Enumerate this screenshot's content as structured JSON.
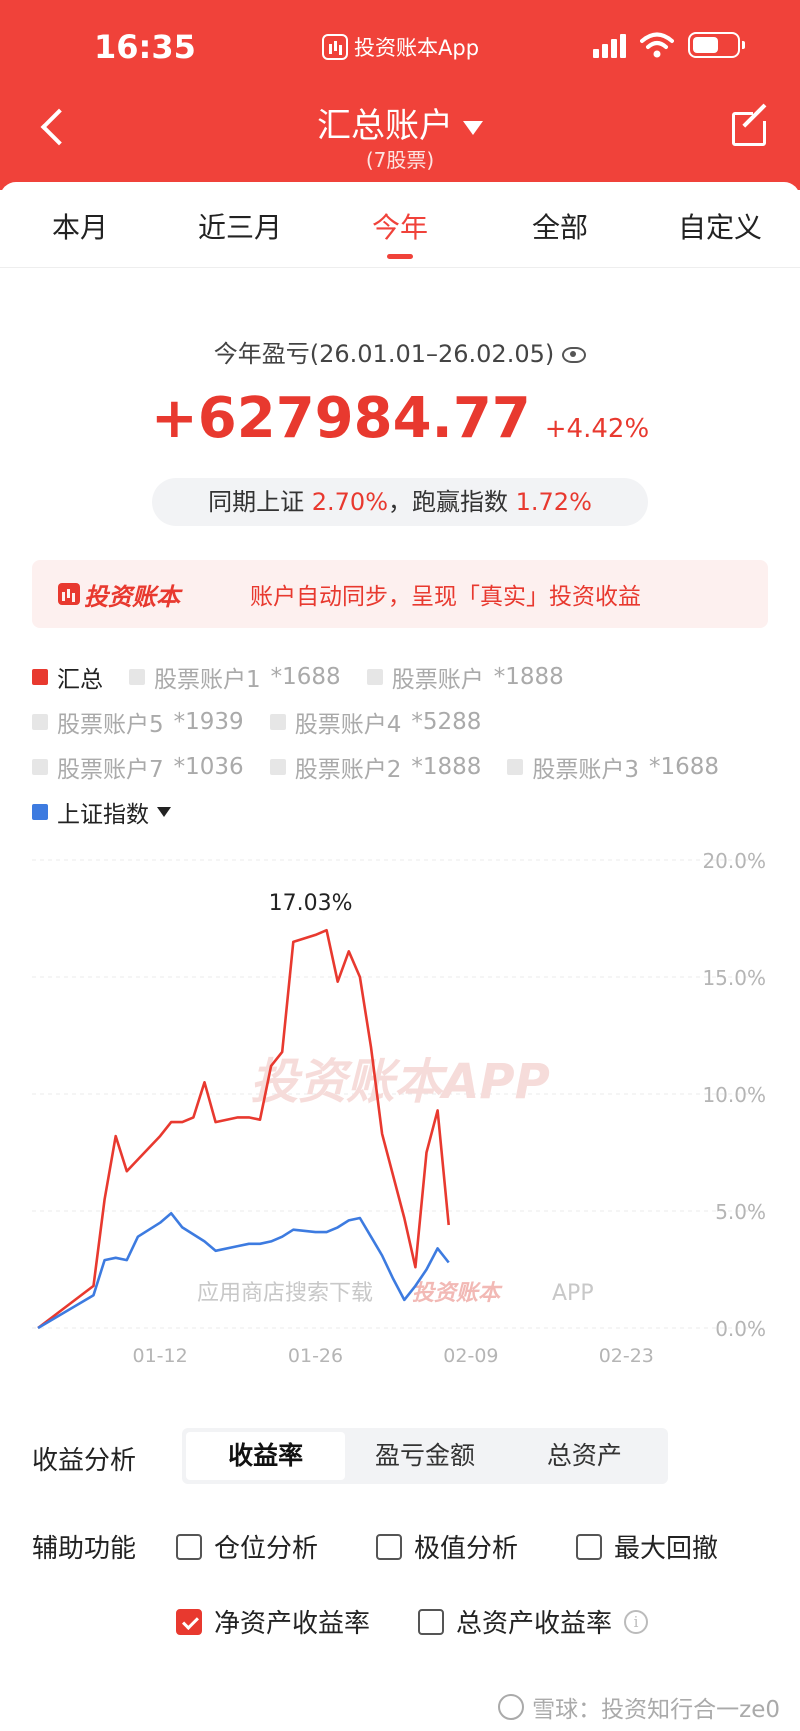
{
  "status_bar": {
    "time": "16:35",
    "app_name": "投资账本App",
    "icons": [
      "signal-icon",
      "wifi-icon",
      "battery-icon"
    ]
  },
  "nav": {
    "title": "汇总账户",
    "subtitle": "(7股票)",
    "back_icon": "back-icon",
    "share_icon": "share-icon"
  },
  "tabs": [
    {
      "label": "本月",
      "active": false
    },
    {
      "label": "近三月",
      "active": false
    },
    {
      "label": "今年",
      "active": true
    },
    {
      "label": "全部",
      "active": false
    },
    {
      "label": "自定义",
      "active": false
    }
  ],
  "summary": {
    "period_label": "今年盈亏(26.01.01–26.02.05)",
    "profit": "+627984.77",
    "profit_pct": "+4.42%",
    "compare_prefix": "同期上证",
    "compare_index_pct": "2.70%",
    "compare_mid": "，跑赢指数",
    "compare_beat_pct": "1.72%"
  },
  "banner": {
    "logo": "投资账本",
    "text": "账户自动同步，呈现「真实」投资收益"
  },
  "legend": {
    "rows": [
      [
        {
          "name": "汇总",
          "account": "",
          "active": true,
          "color": "#e8392f"
        },
        {
          "name": "股票账户1",
          "account": "*1688",
          "active": false,
          "color": "#e6e6e6"
        },
        {
          "name": "股票账户",
          "account": "*1888",
          "active": false,
          "color": "#e6e6e6"
        }
      ],
      [
        {
          "name": "股票账户5",
          "account": "*1939",
          "active": false,
          "color": "#e6e6e6"
        },
        {
          "name": "股票账户4",
          "account": "*5288",
          "active": false,
          "color": "#e6e6e6"
        }
      ],
      [
        {
          "name": "股票账户7",
          "account": "*1036",
          "active": false,
          "color": "#e6e6e6"
        },
        {
          "name": "股票账户2",
          "account": "*1888",
          "active": false,
          "color": "#e6e6e6"
        },
        {
          "name": "股票账户3",
          "account": "*1688",
          "active": false,
          "color": "#e6e6e6"
        }
      ]
    ],
    "index": {
      "name": "上证指数",
      "color": "#3d7be0"
    }
  },
  "chart_data": {
    "type": "line",
    "x_tick_labels": [
      "01-12",
      "01-26",
      "02-09",
      "02-23"
    ],
    "y_tick_labels": [
      "0.0%",
      "5.0%",
      "10.0%",
      "15.0%",
      "20.0%"
    ],
    "ylim": [
      0,
      20
    ],
    "xlim_days": [
      0,
      60
    ],
    "x_tick_days": [
      11,
      25,
      39,
      53
    ],
    "grid": true,
    "peak_label": "17.03%",
    "watermark": "投资账本APP",
    "watermark_sub": "应用商店搜索下载",
    "watermark_sub_logo": "投资账本",
    "watermark_sub_app": "APP",
    "series": [
      {
        "name": "汇总",
        "color": "#e8392f",
        "points": [
          [
            0,
            0
          ],
          [
            5,
            1.8
          ],
          [
            6,
            5.5
          ],
          [
            7,
            8.2
          ],
          [
            8,
            6.7
          ],
          [
            9,
            7.2
          ],
          [
            11,
            8.2
          ],
          [
            12,
            8.8
          ],
          [
            13,
            8.8
          ],
          [
            14,
            9.0
          ],
          [
            15,
            10.5
          ],
          [
            16,
            8.8
          ],
          [
            18,
            9.0
          ],
          [
            19,
            9.0
          ],
          [
            20,
            8.9
          ],
          [
            21,
            11.2
          ],
          [
            22,
            11.8
          ],
          [
            23,
            16.5
          ],
          [
            25,
            16.8
          ],
          [
            26,
            17.0
          ],
          [
            27,
            14.8
          ],
          [
            28,
            16.1
          ],
          [
            29,
            15.0
          ],
          [
            30,
            12.0
          ],
          [
            31,
            8.3
          ],
          [
            33,
            4.7
          ],
          [
            34,
            2.6
          ],
          [
            35,
            7.5
          ],
          [
            36,
            9.3
          ],
          [
            37,
            4.4
          ]
        ]
      },
      {
        "name": "上证指数",
        "color": "#3d7be0",
        "points": [
          [
            0,
            0
          ],
          [
            5,
            1.4
          ],
          [
            6,
            2.9
          ],
          [
            7,
            3.0
          ],
          [
            8,
            2.9
          ],
          [
            9,
            3.9
          ],
          [
            11,
            4.5
          ],
          [
            12,
            4.9
          ],
          [
            13,
            4.3
          ],
          [
            15,
            3.7
          ],
          [
            16,
            3.3
          ],
          [
            18,
            3.5
          ],
          [
            19,
            3.6
          ],
          [
            20,
            3.6
          ],
          [
            21,
            3.7
          ],
          [
            22,
            3.9
          ],
          [
            23,
            4.2
          ],
          [
            25,
            4.1
          ],
          [
            26,
            4.1
          ],
          [
            27,
            4.3
          ],
          [
            28,
            4.6
          ],
          [
            29,
            4.7
          ],
          [
            30,
            3.9
          ],
          [
            31,
            3.1
          ],
          [
            32,
            2.1
          ],
          [
            33,
            1.2
          ],
          [
            34,
            1.8
          ],
          [
            35,
            2.5
          ],
          [
            36,
            3.4
          ],
          [
            37,
            2.8
          ]
        ]
      }
    ]
  },
  "controls": {
    "analysis_label": "收益分析",
    "analysis_options": [
      {
        "label": "收益率",
        "active": true
      },
      {
        "label": "盈亏金额",
        "active": false
      },
      {
        "label": "总资产",
        "active": false
      }
    ],
    "aux_label": "辅助功能",
    "aux_checks": [
      {
        "label": "仓位分析",
        "checked": false
      },
      {
        "label": "极值分析",
        "checked": false
      },
      {
        "label": "最大回撤",
        "checked": false
      }
    ],
    "return_checks": [
      {
        "label": "净资产收益率",
        "checked": true
      },
      {
        "label": "总资产收益率",
        "checked": false
      }
    ]
  },
  "footer_watermark": "雪球：投资知行合一ze0"
}
